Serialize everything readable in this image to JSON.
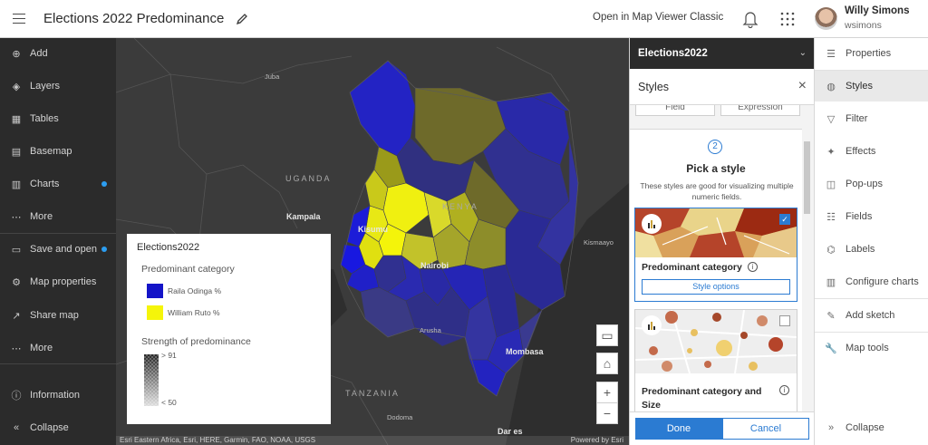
{
  "header": {
    "title": "Elections 2022 Predominance",
    "open_classic": "Open in Map Viewer Classic",
    "user_name": "Willy Simons",
    "user_id": "wsimons"
  },
  "left_sidebar": {
    "items": [
      {
        "label": "Add",
        "icon": "plus-circle-icon"
      },
      {
        "label": "Layers",
        "icon": "layers-icon"
      },
      {
        "label": "Tables",
        "icon": "table-icon"
      },
      {
        "label": "Basemap",
        "icon": "basemap-icon"
      },
      {
        "label": "Charts",
        "icon": "bar-chart-icon"
      },
      {
        "label": "More",
        "icon": "ellipsis-icon"
      },
      {
        "label": "Save and open",
        "icon": "folder-icon"
      },
      {
        "label": "Map properties",
        "icon": "gear-icon"
      },
      {
        "label": "Share map",
        "icon": "share-icon"
      },
      {
        "label": "More",
        "icon": "ellipsis-icon"
      },
      {
        "label": "Information",
        "icon": "info-icon"
      },
      {
        "label": "Collapse",
        "icon": "collapse-icon"
      }
    ]
  },
  "map": {
    "labels": {
      "juba": "Juba",
      "uganda": "UGANDA",
      "kampala": "Kampala",
      "kisumu": "Kisumu",
      "kenya": "KENYA",
      "nairobi": "Nairobi",
      "kismaayo": "Kismaayo",
      "arusha": "Arusha",
      "mombasa": "Mombasa",
      "tanzania": "TANZANIA",
      "dodoma": "Dodoma",
      "dar_es": "Dar es"
    },
    "attribution": "Esri Eastern Africa, Esri, HERE, Garmin, FAO, NOAA, USGS",
    "powered_by": "Powered by Esri",
    "colors": {
      "raila": "#1f1fc0",
      "ruto": "#f2f20a",
      "raila_mid": "#2a2a9a",
      "ruto_mid": "#8a8a2a",
      "land": "#3b3b3b"
    }
  },
  "legend": {
    "title": "Elections2022",
    "category_heading": "Predominant category",
    "items": [
      {
        "label": "Raila Odinga %",
        "color": "#1414c8"
      },
      {
        "label": "William Ruto %",
        "color": "#f5f50a"
      }
    ],
    "strength_heading": "Strength of predominance",
    "high": "> 91",
    "low": "< 50"
  },
  "panel": {
    "layer_name": "Elections2022",
    "styles_title": "Styles",
    "top_buttons": [
      "Field",
      "Expression"
    ],
    "step_number": "2",
    "step_title": "Pick a style",
    "step_desc": "These styles are good for visualizing multiple numeric fields.",
    "card1_title": "Predominant category",
    "style_options": "Style options",
    "card2_title": "Predominant category and Size",
    "done": "Done",
    "cancel": "Cancel"
  },
  "right_sidebar": {
    "items": [
      {
        "label": "Properties",
        "icon": "sliders-icon"
      },
      {
        "label": "Styles",
        "icon": "styles-icon",
        "active": true
      },
      {
        "label": "Filter",
        "icon": "filter-icon"
      },
      {
        "label": "Effects",
        "icon": "effects-icon"
      },
      {
        "label": "Pop-ups",
        "icon": "popup-icon"
      },
      {
        "label": "Fields",
        "icon": "fields-icon"
      },
      {
        "label": "Labels",
        "icon": "label-icon"
      },
      {
        "label": "Configure charts",
        "icon": "configure-charts-icon"
      },
      {
        "label": "Add sketch",
        "icon": "sketch-icon"
      },
      {
        "label": "Map tools",
        "icon": "wrench-icon"
      },
      {
        "label": "Collapse",
        "icon": "collapse-icon"
      }
    ]
  }
}
